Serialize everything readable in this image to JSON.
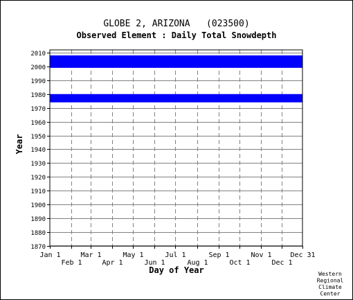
{
  "chart_data": {
    "type": "heatmap",
    "title": "GLOBE 2, ARIZONA   (023500)",
    "subtitle": "Observed Element : Daily Total Snowdepth",
    "xlabel": "Day of Year",
    "ylabel": "Year",
    "xlim": [
      1,
      365
    ],
    "ylim": [
      1870,
      2012
    ],
    "y_ticks": [
      2010,
      2000,
      1990,
      1980,
      1970,
      1960,
      1950,
      1940,
      1930,
      1920,
      1910,
      1900,
      1890,
      1880,
      1870
    ],
    "x_ticks_top": [
      {
        "label": "Jan 1",
        "day": 1
      },
      {
        "label": "Mar 1",
        "day": 60
      },
      {
        "label": "May 1",
        "day": 121
      },
      {
        "label": "Jul 1",
        "day": 182
      },
      {
        "label": "Sep 1",
        "day": 244
      },
      {
        "label": "Nov 1",
        "day": 305
      },
      {
        "label": "Dec 31",
        "day": 365
      }
    ],
    "x_ticks_bottom": [
      {
        "label": "Feb 1",
        "day": 32
      },
      {
        "label": "Apr 1",
        "day": 91
      },
      {
        "label": "Jun 1",
        "day": 152
      },
      {
        "label": "Aug 1",
        "day": 213
      },
      {
        "label": "Oct 1",
        "day": 274
      },
      {
        "label": "Dec 1",
        "day": 335
      }
    ],
    "grid": true,
    "data_color": "#0000ff",
    "observed_periods": [
      {
        "year_start": 1974,
        "year_end": 1979,
        "day_start": 1,
        "day_end": 365
      },
      {
        "year_start": 1999,
        "year_end": 2007,
        "day_start": 1,
        "day_end": 365
      }
    ]
  },
  "footer": {
    "credit_lines": [
      "Western",
      "Regional",
      "Climate",
      "Center"
    ]
  }
}
